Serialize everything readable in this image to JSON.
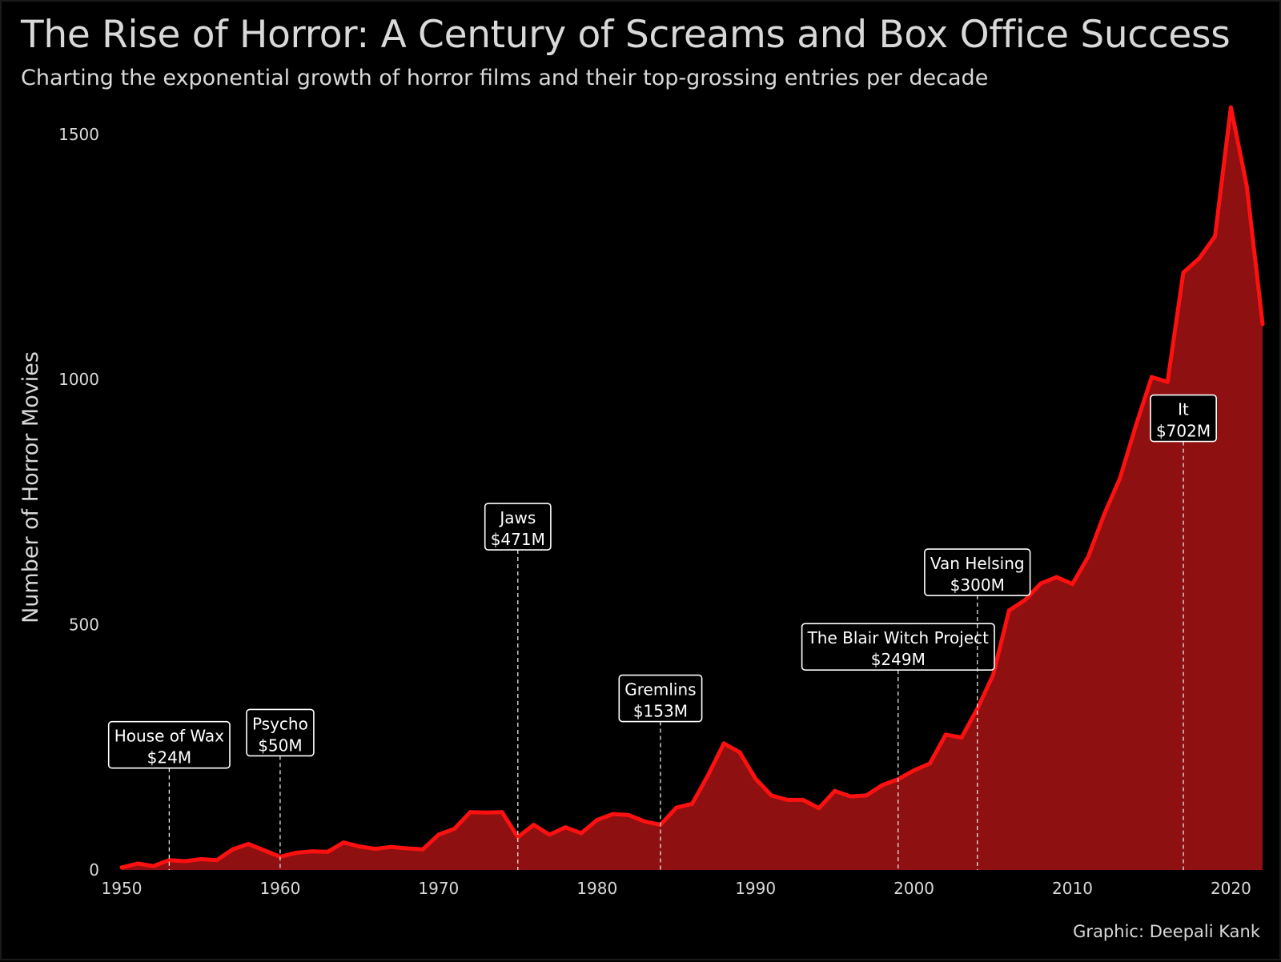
{
  "title": "The Rise of Horror: A Century of Screams and Box Office Success",
  "subtitle": "Charting the exponential growth of horror films and their top-grossing entries per decade",
  "credit": "Graphic: Deepali Kank",
  "colors": {
    "background": "#000000",
    "line": "#ff1010",
    "area": "#8e1010",
    "text": "#d9d9d9",
    "annotation": "#ffffff"
  },
  "chart_data": {
    "type": "area",
    "ylabel": "Number of Horror Movies",
    "xlabel": "",
    "xlim": [
      1950,
      2022
    ],
    "ylim": [
      0,
      1560
    ],
    "xticks": [
      1950,
      1960,
      1970,
      1980,
      1990,
      2000,
      2010,
      2020
    ],
    "yticks": [
      0,
      500,
      1000,
      1500
    ],
    "grid": false,
    "x": [
      1950,
      1951,
      1952,
      1953,
      1954,
      1955,
      1956,
      1957,
      1958,
      1959,
      1960,
      1961,
      1962,
      1963,
      1964,
      1965,
      1966,
      1967,
      1968,
      1969,
      1970,
      1971,
      1972,
      1973,
      1974,
      1975,
      1976,
      1977,
      1978,
      1979,
      1980,
      1981,
      1982,
      1983,
      1984,
      1985,
      1986,
      1987,
      1988,
      1989,
      1990,
      1991,
      1992,
      1993,
      1994,
      1995,
      1996,
      1997,
      1998,
      1999,
      2000,
      2001,
      2002,
      2003,
      2004,
      2005,
      2006,
      2007,
      2008,
      2009,
      2010,
      2011,
      2012,
      2013,
      2014,
      2015,
      2016,
      2017,
      2018,
      2019,
      2020,
      2021,
      2022
    ],
    "values": [
      5,
      13,
      8,
      20,
      18,
      22,
      20,
      42,
      53,
      40,
      27,
      35,
      38,
      37,
      56,
      48,
      43,
      47,
      44,
      42,
      72,
      84,
      118,
      117,
      118,
      67,
      92,
      72,
      87,
      75,
      102,
      114,
      112,
      99,
      92,
      127,
      135,
      193,
      258,
      240,
      186,
      152,
      143,
      143,
      126,
      161,
      150,
      152,
      173,
      185,
      203,
      217,
      276,
      270,
      329,
      398,
      529,
      550,
      584,
      597,
      583,
      639,
      725,
      799,
      906,
      1005,
      995,
      1218,
      1247,
      1292,
      1555,
      1395,
      1113
    ],
    "annotations": [
      {
        "x": 1953,
        "movie": "House of Wax",
        "gross": "$24M",
        "label_y": 255
      },
      {
        "x": 1960,
        "movie": "Psycho",
        "gross": "$50M",
        "label_y": 280
      },
      {
        "x": 1975,
        "movie": "Jaws",
        "gross": "$471M",
        "label_y": 700
      },
      {
        "x": 1984,
        "movie": "Gremlins",
        "gross": "$153M",
        "label_y": 350
      },
      {
        "x": 1999,
        "movie": "The Blair Witch Project",
        "gross": "$249M",
        "label_y": 455
      },
      {
        "x": 2004,
        "movie": "Van Helsing",
        "gross": "$300M",
        "label_y": 607
      },
      {
        "x": 2017,
        "movie": "It",
        "gross": "$702M",
        "label_y": 921
      }
    ]
  }
}
